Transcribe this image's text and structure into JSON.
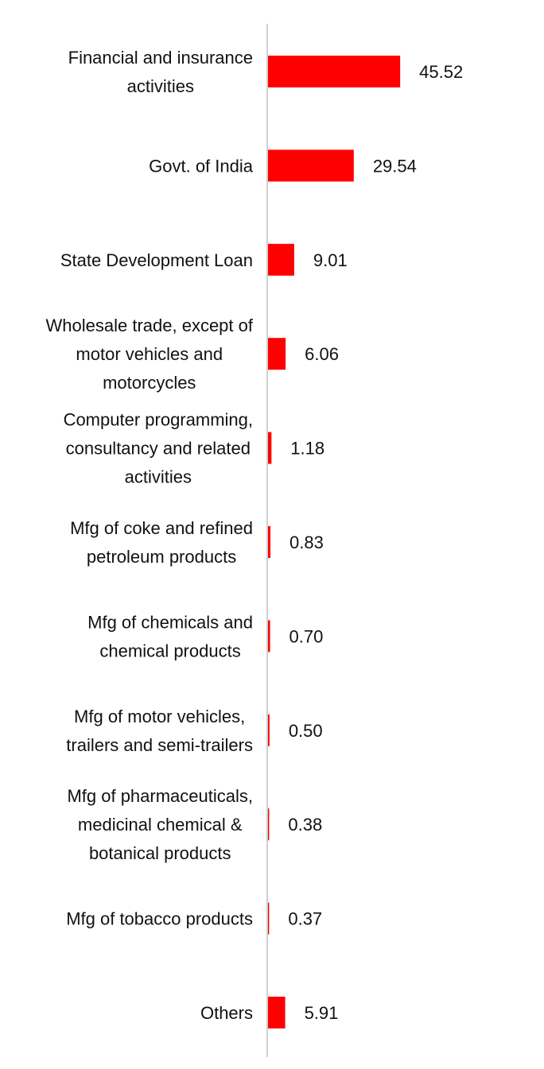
{
  "chart_data": {
    "type": "bar",
    "orientation": "horizontal",
    "categories": [
      [
        "Financial and insurance",
        "activities"
      ],
      [
        "Govt. of India"
      ],
      [
        "State Development Loan"
      ],
      [
        "Wholesale trade, except of",
        "motor vehicles and",
        "motorcycles"
      ],
      [
        "Computer programming,",
        "consultancy and related",
        "activities"
      ],
      [
        "Mfg of coke and refined",
        "petroleum products"
      ],
      [
        "Mfg of chemicals and",
        "chemical products"
      ],
      [
        "Mfg of motor vehicles,",
        "trailers and semi-trailers"
      ],
      [
        "Mfg of pharmaceuticals,",
        "medicinal chemical &",
        "botanical products"
      ],
      [
        "Mfg of tobacco products"
      ],
      [
        "Others"
      ]
    ],
    "values": [
      45.52,
      29.54,
      9.01,
      6.06,
      1.18,
      0.83,
      0.7,
      0.5,
      0.38,
      0.37,
      5.91
    ],
    "value_labels": [
      "45.52",
      "29.54",
      "9.01",
      "6.06",
      "1.18",
      "0.83",
      "0.70",
      "0.50",
      "0.38",
      "0.37",
      "5.91"
    ],
    "bar_color": "#ff0000",
    "axis_color": "#d0d0d0",
    "xlim": [
      0,
      100
    ],
    "grid": false,
    "legend": "none"
  }
}
